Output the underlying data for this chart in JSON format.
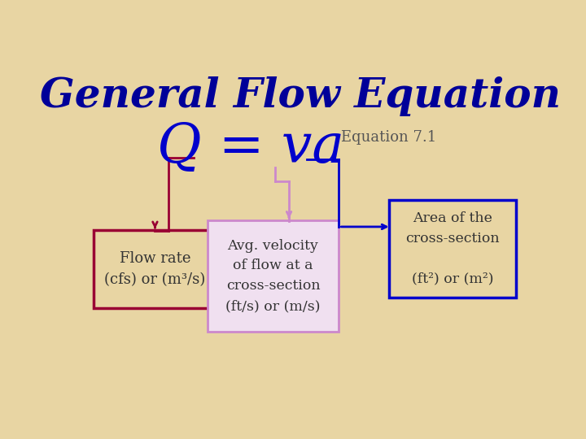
{
  "title": "General Flow Equation",
  "title_color": "#000099",
  "title_fontsize": 36,
  "bg_color": "#e8d5a3",
  "equation": "Q = va",
  "equation_color": "#0000cc",
  "equation_fontsize": 48,
  "equation_label": "Equation 7.1",
  "equation_label_color": "#555555",
  "equation_label_fontsize": 13,
  "box1_text": "Flow rate\n(cfs) or (m³/s)",
  "box1_color": "#990033",
  "box1_bg": "#e8d5a3",
  "box2_text": "Avg. velocity\nof flow at a\ncross-section\n(ft/s) or (m/s)",
  "box2_color": "#cc88cc",
  "box2_bg": "#f0e0f0",
  "box3_text": "Area of the\ncross-section\n\n(ft²) or (m²)",
  "box3_color": "#0000cc",
  "box3_bg": "#e8d5a3",
  "arrow1_color": "#990033",
  "arrow2_color": "#cc88cc",
  "arrow3_color": "#0000cc"
}
